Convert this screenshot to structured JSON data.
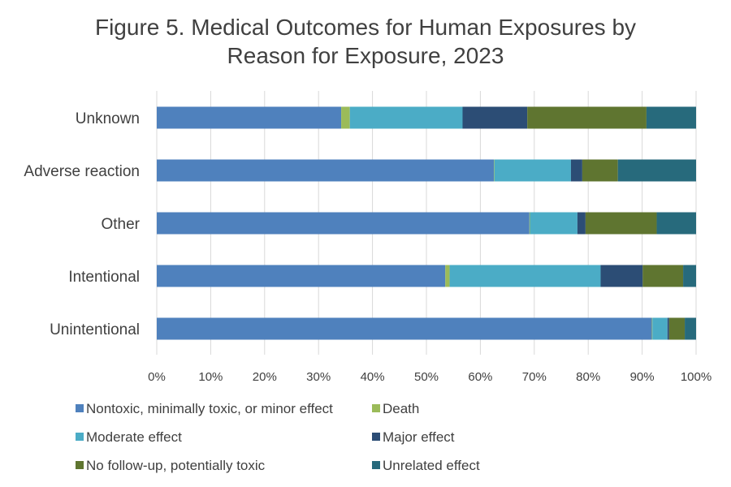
{
  "chart_data": {
    "type": "bar",
    "orientation": "horizontal",
    "stacked": true,
    "title_lines": [
      "Figure 5. Medical Outcomes for Human Exposures by",
      "Reason for Exposure, 2023"
    ],
    "categories": [
      "Unknown",
      "Adverse reaction",
      "Other",
      "Intentional",
      "Unintentional"
    ],
    "xlim": [
      0,
      100
    ],
    "x_ticks": [
      "0%",
      "10%",
      "20%",
      "30%",
      "40%",
      "50%",
      "60%",
      "70%",
      "80%",
      "90%",
      "100%"
    ],
    "grid": true,
    "legend_position": "bottom",
    "series": [
      {
        "name": "Nontoxic, minimally toxic, or minor effect",
        "color": "#4F81BD",
        "values": [
          34.2,
          62.5,
          69.1,
          53.5,
          91.8
        ]
      },
      {
        "name": "Death",
        "color": "#9BBB59",
        "values": [
          1.6,
          0.1,
          0.1,
          0.8,
          0.1
        ]
      },
      {
        "name": "Moderate effect",
        "color": "#4BACC6",
        "values": [
          20.9,
          14.2,
          8.8,
          28.0,
          2.8
        ]
      },
      {
        "name": "Major effect",
        "color": "#2C4D75",
        "values": [
          12.0,
          2.1,
          1.5,
          7.8,
          0.3
        ]
      },
      {
        "name": "No follow-up, potentially toxic",
        "color": "#5F7530",
        "values": [
          22.1,
          6.6,
          13.2,
          7.5,
          2.9
        ]
      },
      {
        "name": "Unrelated effect",
        "color": "#276A7C",
        "values": [
          9.2,
          14.5,
          7.3,
          2.4,
          2.1
        ]
      }
    ]
  }
}
